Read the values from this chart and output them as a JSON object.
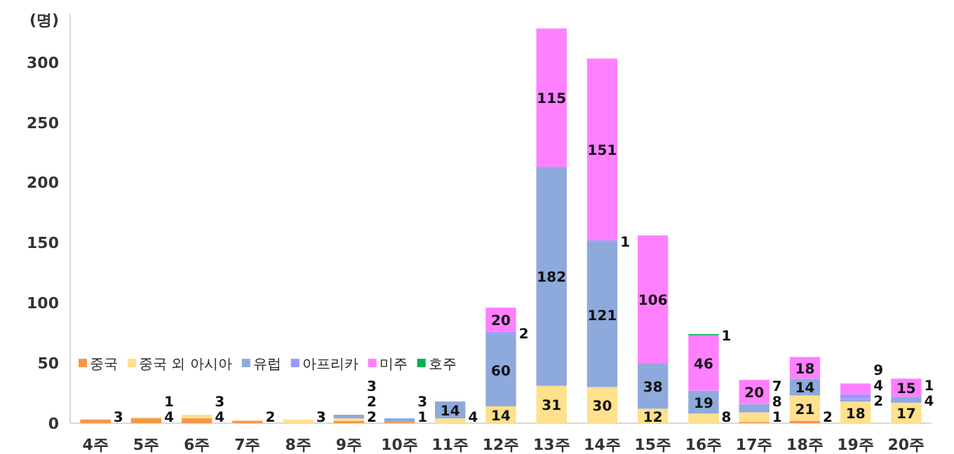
{
  "chart_data": {
    "type": "bar",
    "stacked": true,
    "ylabel": "(명)",
    "ylim": [
      0,
      340
    ],
    "yticks": [
      0,
      50,
      100,
      150,
      200,
      250,
      300
    ],
    "grid": false,
    "legend": "bottom left",
    "data_labels": true,
    "categories": [
      "4주",
      "5주",
      "6주",
      "7주",
      "8주",
      "9주",
      "10주",
      "11주",
      "12주",
      "13주",
      "14주",
      "15주",
      "16주",
      "17주",
      "18주",
      "19주",
      "20주"
    ],
    "series": [
      {
        "name": "중국",
        "color": "#f79646",
        "values": [
          3,
          4,
          4,
          2,
          null,
          2,
          1,
          null,
          null,
          null,
          null,
          null,
          null,
          1,
          2,
          null,
          null
        ]
      },
      {
        "name": "중국 외 아시아",
        "color": "#ffe08c",
        "values": [
          null,
          1,
          3,
          null,
          3,
          2,
          null,
          4,
          14,
          31,
          30,
          12,
          8,
          8,
          21,
          18,
          17
        ]
      },
      {
        "name": "유럽",
        "color": "#8ea9db",
        "values": [
          null,
          null,
          null,
          null,
          null,
          3,
          3,
          14,
          60,
          182,
          121,
          38,
          19,
          7,
          14,
          2,
          4
        ]
      },
      {
        "name": "아프리카",
        "color": "#9999ff",
        "values": [
          null,
          null,
          null,
          null,
          null,
          null,
          null,
          null,
          2,
          null,
          1,
          null,
          null,
          null,
          null,
          4,
          1
        ]
      },
      {
        "name": "미주",
        "color": "#ff80ff",
        "values": [
          null,
          null,
          null,
          null,
          null,
          null,
          null,
          null,
          20,
          115,
          151,
          106,
          46,
          20,
          18,
          9,
          15
        ]
      },
      {
        "name": "호주",
        "color": "#00b050",
        "values": [
          null,
          null,
          null,
          null,
          null,
          null,
          null,
          null,
          null,
          null,
          null,
          null,
          1,
          null,
          null,
          null,
          null
        ]
      }
    ]
  }
}
